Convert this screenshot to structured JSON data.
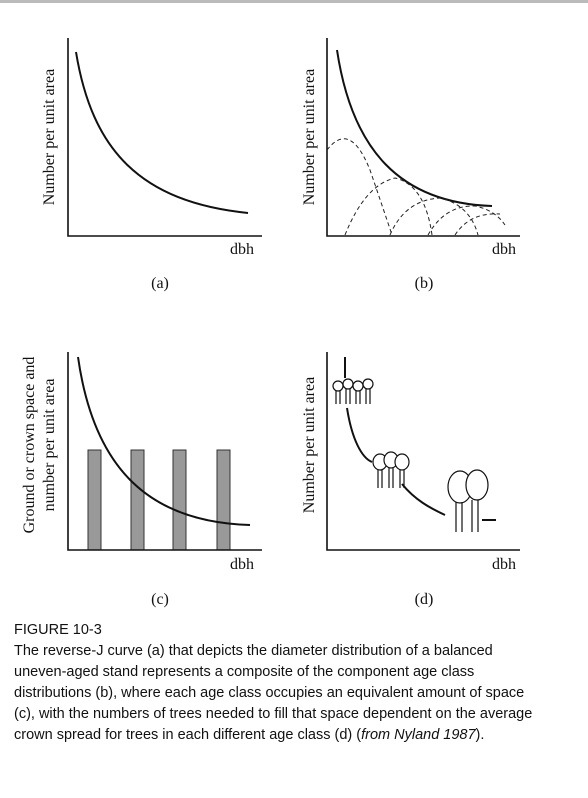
{
  "panels": [
    {
      "y_label_lines": [
        "Number per unit area"
      ],
      "x_label": "dbh",
      "label": "(a)"
    },
    {
      "y_label_lines": [
        "Number per unit area"
      ],
      "x_label": "dbh",
      "label": "(b)"
    },
    {
      "y_label_lines": [
        "Ground or crown space and",
        "number per unit area"
      ],
      "x_label": "dbh",
      "label": "(c)"
    },
    {
      "y_label_lines": [
        "Number per unit area"
      ],
      "x_label": "dbh",
      "label": "(d)"
    }
  ],
  "caption": {
    "heading": "FIGURE 10-3",
    "text_before": "The reverse-J curve (a) that depicts the diameter distribution of a balanced uneven-aged stand represents a composite of the component age class distributions (b), where each age class occupies an equivalent amount of space (c), with the numbers of trees needed to fill that space dependent on the average crown spread for trees in each different age class (d) (",
    "citation": "from Nyland 1987",
    "text_after": ")."
  }
}
